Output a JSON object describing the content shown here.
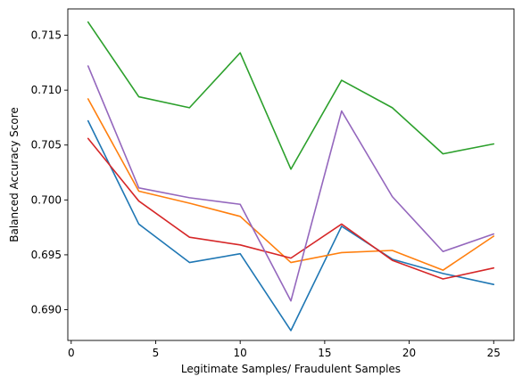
{
  "chart_data": {
    "type": "line",
    "title": "",
    "xlabel": "Legitimate Samples/ Fraudulent Samples",
    "ylabel": "Balanced Accuracy Score",
    "x": [
      1,
      4,
      7,
      10,
      13,
      16,
      19,
      22,
      25
    ],
    "xlim": [
      -0.2,
      26.2
    ],
    "ylim": [
      0.6872,
      0.7174
    ],
    "xticks": [
      0,
      5,
      10,
      15,
      20,
      25
    ],
    "yticks": [
      0.69,
      0.695,
      0.7,
      0.705,
      0.71,
      0.715
    ],
    "xtick_labels": [
      "0",
      "5",
      "10",
      "15",
      "20",
      "25"
    ],
    "ytick_labels": [
      "0.690",
      "0.695",
      "0.700",
      "0.705",
      "0.710",
      "0.715"
    ],
    "grid": false,
    "legend": "none",
    "series": [
      {
        "color": "#1f77b4",
        "values": [
          0.7072,
          0.6978,
          0.6943,
          0.6951,
          0.6881,
          0.6976,
          0.6946,
          0.6933,
          0.6923
        ]
      },
      {
        "color": "#ff7f0e",
        "values": [
          0.7092,
          0.7008,
          0.6997,
          0.6985,
          0.6943,
          0.6952,
          0.6954,
          0.6936,
          0.6967
        ]
      },
      {
        "color": "#2ca02c",
        "values": [
          0.7162,
          0.7094,
          0.7084,
          0.7134,
          0.7028,
          0.7109,
          0.7084,
          0.7042,
          0.7051
        ]
      },
      {
        "color": "#d62728",
        "values": [
          0.7056,
          0.6999,
          0.6966,
          0.6959,
          0.6947,
          0.6978,
          0.6945,
          0.6928,
          0.6938
        ]
      },
      {
        "color": "#9467bd",
        "values": [
          0.7122,
          0.7011,
          0.7002,
          0.6996,
          0.6908,
          0.7081,
          0.7003,
          0.6953,
          0.6969
        ]
      }
    ]
  }
}
